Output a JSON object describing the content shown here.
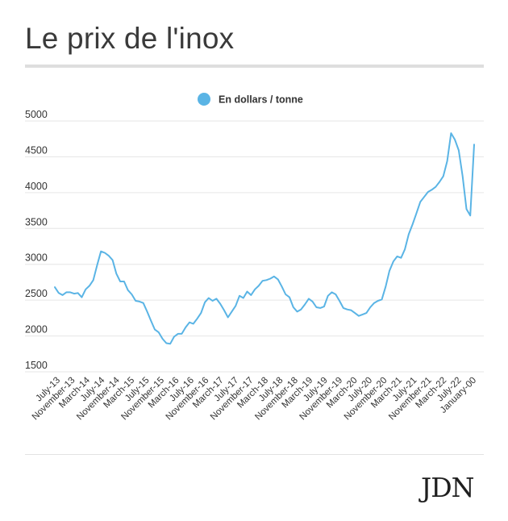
{
  "page": {
    "title": "Le prix de l'inox",
    "logo": "JDN"
  },
  "chart_data": {
    "type": "line",
    "legend": "En dollars / tonne",
    "legend_position": "top-center",
    "ylim": [
      1500,
      5000
    ],
    "yticks": [
      5000,
      4500,
      4000,
      3500,
      3000,
      2500,
      2000,
      1500
    ],
    "grid": true,
    "line_color": "#5ab4e5",
    "x_tick_labels": [
      "July-13",
      "November-13",
      "March-14",
      "July-14",
      "November-14",
      "March-15",
      "July-15",
      "November-15",
      "March-16",
      "July-16",
      "November-16",
      "March-17",
      "July-17",
      "November-17",
      "March-18",
      "July-18",
      "November-18",
      "March-19",
      "July-19",
      "November-19",
      "March-20",
      "July-20",
      "November-20",
      "March-21",
      "July-21",
      "November-21",
      "March-22",
      "July-22",
      "January-00"
    ],
    "series": [
      {
        "name": "En dollars / tonne",
        "values": [
          2680,
          2600,
          2570,
          2610,
          2610,
          2590,
          2600,
          2540,
          2650,
          2700,
          2780,
          2990,
          3180,
          3160,
          3120,
          3060,
          2870,
          2760,
          2760,
          2640,
          2580,
          2490,
          2480,
          2460,
          2340,
          2210,
          2090,
          2050,
          1960,
          1900,
          1890,
          1990,
          2030,
          2030,
          2120,
          2190,
          2170,
          2240,
          2320,
          2470,
          2530,
          2490,
          2520,
          2450,
          2360,
          2260,
          2340,
          2420,
          2560,
          2530,
          2620,
          2570,
          2650,
          2700,
          2770,
          2780,
          2800,
          2830,
          2790,
          2690,
          2580,
          2540,
          2400,
          2340,
          2370,
          2440,
          2520,
          2480,
          2400,
          2390,
          2410,
          2560,
          2610,
          2580,
          2490,
          2390,
          2370,
          2360,
          2320,
          2280,
          2300,
          2320,
          2400,
          2460,
          2490,
          2510,
          2690,
          2910,
          3040,
          3110,
          3090,
          3210,
          3420,
          3560,
          3710,
          3870,
          3940,
          4010,
          4040,
          4080,
          4150,
          4230,
          4440,
          4830,
          4740,
          4590,
          4230,
          3770,
          3680,
          4670
        ]
      }
    ]
  }
}
